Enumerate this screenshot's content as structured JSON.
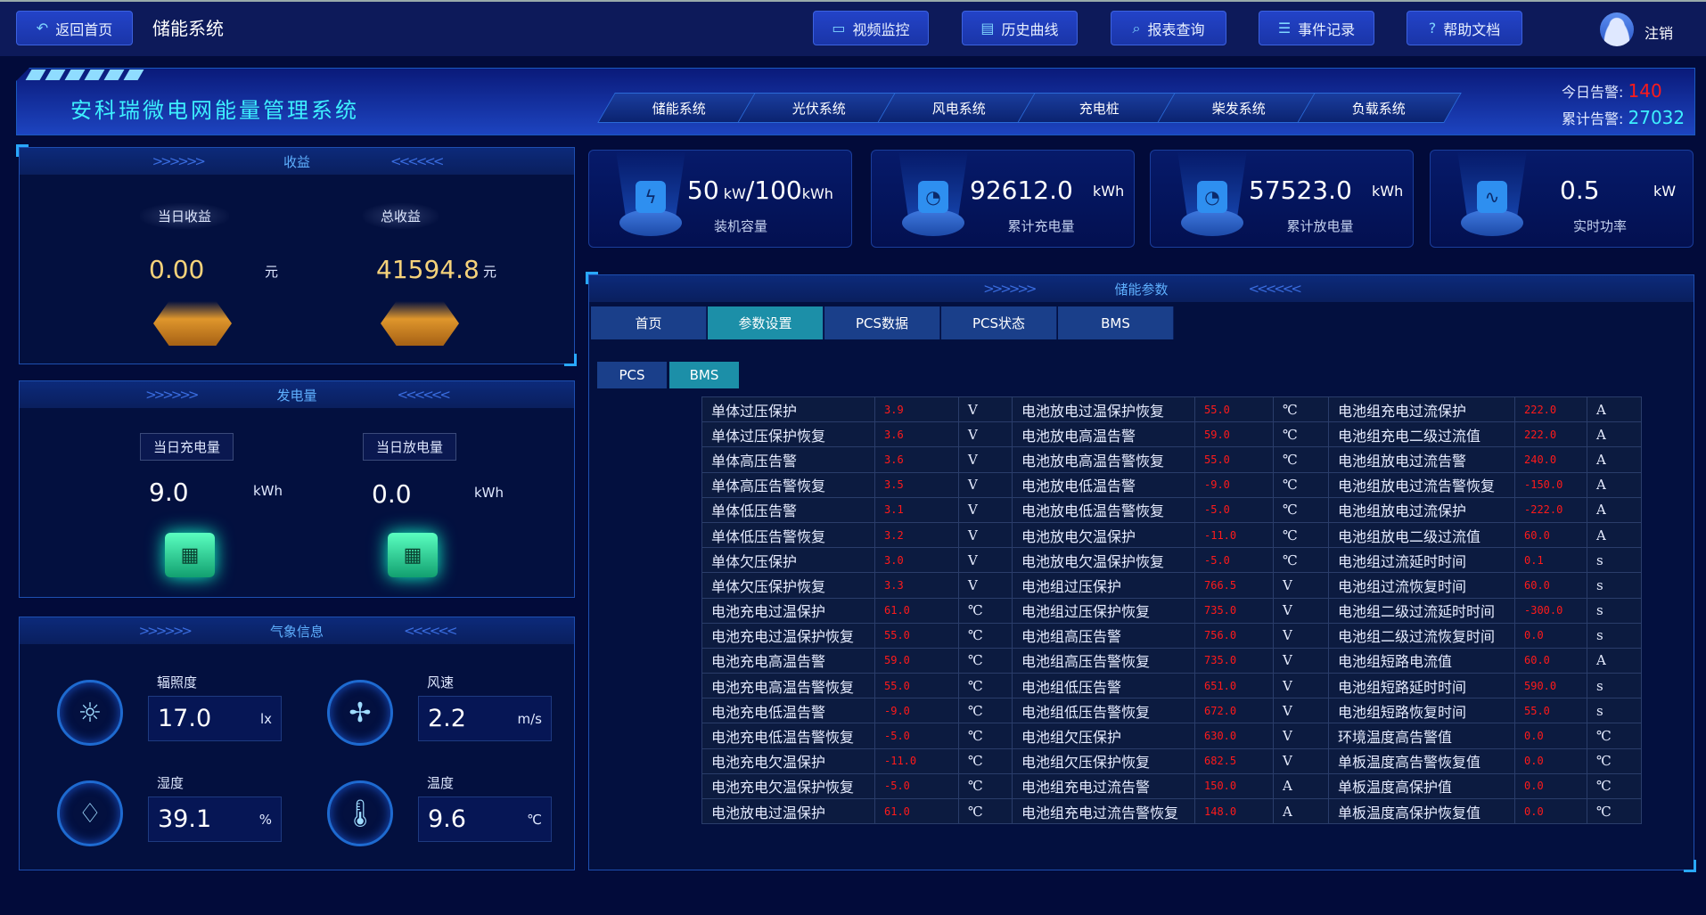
{
  "header": {
    "back_label": "返回首页",
    "app_title": "储能系统",
    "buttons": [
      {
        "label": "视频监控",
        "icon": "video-icon"
      },
      {
        "label": "历史曲线",
        "icon": "chart-icon"
      },
      {
        "label": "报表查询",
        "icon": "search-icon"
      },
      {
        "label": "事件记录",
        "icon": "document-icon"
      },
      {
        "label": "帮助文档",
        "icon": "help-icon"
      }
    ],
    "logout_label": "注销"
  },
  "banner": {
    "title": "安科瑞微电网能量管理系统",
    "tabs": [
      "储能系统",
      "光伏系统",
      "风电系统",
      "充电桩",
      "柴发系统",
      "负载系统"
    ],
    "today_alarm_label": "今日告警:",
    "today_alarm": "140",
    "total_alarm_label": "累计告警:",
    "total_alarm": "27032"
  },
  "revenue": {
    "title": "收益",
    "today_label": "当日收益",
    "today_value": "0.00",
    "today_unit": "元",
    "total_label": "总收益",
    "total_value": "41594.8",
    "total_unit": "元"
  },
  "energy": {
    "title": "发电量",
    "charge_label": "当日充电量",
    "charge_value": "9.0",
    "charge_unit": "kWh",
    "discharge_label": "当日放电量",
    "discharge_value": "0.0",
    "discharge_unit": "kWh"
  },
  "weather": {
    "title": "气象信息",
    "items": [
      {
        "label": "辐照度",
        "value": "17.0",
        "unit": "lx",
        "icon": "sun-icon"
      },
      {
        "label": "风速",
        "value": "2.2",
        "unit": "m/s",
        "icon": "fan-icon"
      },
      {
        "label": "湿度",
        "value": "39.1",
        "unit": "%",
        "icon": "droplet-icon"
      },
      {
        "label": "温度",
        "value": "9.6",
        "unit": "℃",
        "icon": "thermometer-icon"
      }
    ]
  },
  "cards": [
    {
      "value": "50",
      "unit1": "kW",
      "value2": "/100",
      "unit2": "kWh",
      "label": "装机容量",
      "icon": "battery-icon"
    },
    {
      "value": "92612.0",
      "unit": "kWh",
      "label": "累计充电量",
      "icon": "gauge-icon"
    },
    {
      "value": "57523.0",
      "unit": "kWh",
      "label": "累计放电量",
      "icon": "gauge-icon"
    },
    {
      "value": "0.5",
      "unit": "kW",
      "label": "实时功率",
      "icon": "pulse-icon"
    }
  ],
  "params": {
    "title": "储能参数",
    "tabs": [
      "首页",
      "参数设置",
      "PCS数据",
      "PCS状态",
      "BMS"
    ],
    "active_tab": "参数设置",
    "subtabs": [
      "PCS",
      "BMS"
    ],
    "active_subtab": "BMS",
    "rows": [
      [
        [
          "单体过压保护",
          "3.9",
          "V"
        ],
        [
          "电池放电过温保护恢复",
          "55.0",
          "℃"
        ],
        [
          "电池组充电过流保护",
          "222.0",
          "A"
        ]
      ],
      [
        [
          "单体过压保护恢复",
          "3.6",
          "V"
        ],
        [
          "电池放电高温告警",
          "59.0",
          "℃"
        ],
        [
          "电池组充电二级过流值",
          "222.0",
          "A"
        ]
      ],
      [
        [
          "单体高压告警",
          "3.6",
          "V"
        ],
        [
          "电池放电高温告警恢复",
          "55.0",
          "℃"
        ],
        [
          "电池组放电过流告警",
          "240.0",
          "A"
        ]
      ],
      [
        [
          "单体高压告警恢复",
          "3.5",
          "V"
        ],
        [
          "电池放电低温告警",
          "-9.0",
          "℃"
        ],
        [
          "电池组放电过流告警恢复",
          "-150.0",
          "A"
        ]
      ],
      [
        [
          "单体低压告警",
          "3.1",
          "V"
        ],
        [
          "电池放电低温告警恢复",
          "-5.0",
          "℃"
        ],
        [
          "电池组放电过流保护",
          "-222.0",
          "A"
        ]
      ],
      [
        [
          "单体低压告警恢复",
          "3.2",
          "V"
        ],
        [
          "电池放电欠温保护",
          "-11.0",
          "℃"
        ],
        [
          "电池组放电二级过流值",
          "60.0",
          "A"
        ]
      ],
      [
        [
          "单体欠压保护",
          "3.0",
          "V"
        ],
        [
          "电池放电欠温保护恢复",
          "-5.0",
          "℃"
        ],
        [
          "电池组过流延时时间",
          "0.1",
          "s"
        ]
      ],
      [
        [
          "单体欠压保护恢复",
          "3.3",
          "V"
        ],
        [
          "电池组过压保护",
          "766.5",
          "V"
        ],
        [
          "电池组过流恢复时间",
          "60.0",
          "s"
        ]
      ],
      [
        [
          "电池充电过温保护",
          "61.0",
          "℃"
        ],
        [
          "电池组过压保护恢复",
          "735.0",
          "V"
        ],
        [
          "电池组二级过流延时时间",
          "-300.0",
          "s"
        ]
      ],
      [
        [
          "电池充电过温保护恢复",
          "55.0",
          "℃"
        ],
        [
          "电池组高压告警",
          "756.0",
          "V"
        ],
        [
          "电池组二级过流恢复时间",
          "0.0",
          "s"
        ]
      ],
      [
        [
          "电池充电高温告警",
          "59.0",
          "℃"
        ],
        [
          "电池组高压告警恢复",
          "735.0",
          "V"
        ],
        [
          "电池组短路电流值",
          "60.0",
          "A"
        ]
      ],
      [
        [
          "电池充电高温告警恢复",
          "55.0",
          "℃"
        ],
        [
          "电池组低压告警",
          "651.0",
          "V"
        ],
        [
          "电池组短路延时时间",
          "590.0",
          "s"
        ]
      ],
      [
        [
          "电池充电低温告警",
          "-9.0",
          "℃"
        ],
        [
          "电池组低压告警恢复",
          "672.0",
          "V"
        ],
        [
          "电池组短路恢复时间",
          "55.0",
          "s"
        ]
      ],
      [
        [
          "电池充电低温告警恢复",
          "-5.0",
          "℃"
        ],
        [
          "电池组欠压保护",
          "630.0",
          "V"
        ],
        [
          "环境温度高告警值",
          "0.0",
          "℃"
        ]
      ],
      [
        [
          "电池充电欠温保护",
          "-11.0",
          "℃"
        ],
        [
          "电池组欠压保护恢复",
          "682.5",
          "V"
        ],
        [
          "单板温度高告警恢复值",
          "0.0",
          "℃"
        ]
      ],
      [
        [
          "电池充电欠温保护恢复",
          "-5.0",
          "℃"
        ],
        [
          "电池组充电过流告警",
          "150.0",
          "A"
        ],
        [
          "单板温度高保护值",
          "0.0",
          "℃"
        ]
      ],
      [
        [
          "电池放电过温保护",
          "61.0",
          "℃"
        ],
        [
          "电池组充电过流告警恢复",
          "148.0",
          "A"
        ],
        [
          "单板温度高保护恢复值",
          "0.0",
          "℃"
        ]
      ]
    ]
  },
  "colors": {
    "background": "#020b3a",
    "accent": "#3ef0ff",
    "alarm": "#ff1a1a",
    "value_red": "#ff1a1a",
    "active_tab": "#1c8fa8"
  }
}
